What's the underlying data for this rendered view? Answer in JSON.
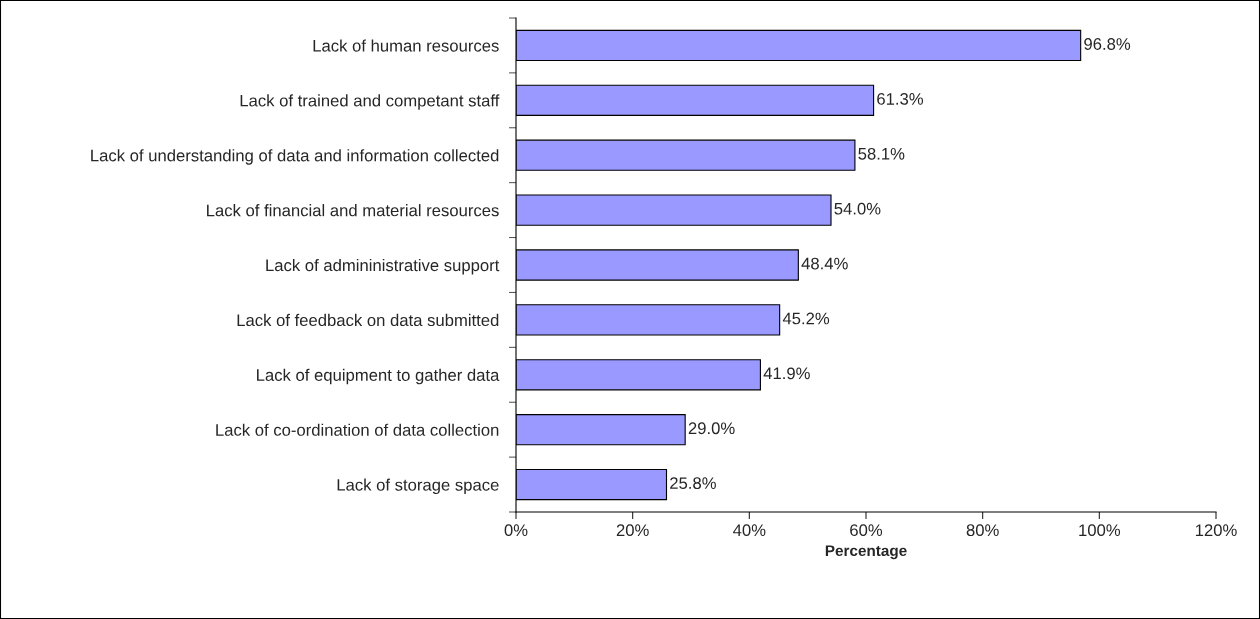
{
  "chart_data": {
    "type": "bar",
    "orientation": "horizontal",
    "xlabel": "Percentage",
    "categories": [
      "Lack of human resources",
      "Lack of trained and competant staff",
      "Lack of understanding of data and information collected",
      "Lack of financial and material resources",
      "Lack of admininistrative support",
      "Lack of feedback on data submitted",
      "Lack of equipment to gather data",
      "Lack of co-ordination of data collection",
      "Lack of storage space"
    ],
    "values": [
      96.8,
      61.3,
      58.1,
      54.0,
      48.4,
      45.2,
      41.9,
      29.0,
      25.8
    ],
    "value_labels": [
      "96.8%",
      "61.3%",
      "58.1%",
      "54.0%",
      "48.4%",
      "45.2%",
      "41.9%",
      "29.0%",
      "25.8%"
    ],
    "color": "#9999ff",
    "xlim": [
      0,
      120
    ],
    "xticks": [
      {
        "value": 0,
        "label": "0%"
      },
      {
        "value": 20,
        "label": "20%"
      },
      {
        "value": 40,
        "label": "40%"
      },
      {
        "value": 60,
        "label": "60%"
      },
      {
        "value": 80,
        "label": "80%"
      },
      {
        "value": 100,
        "label": "100%"
      },
      {
        "value": 120,
        "label": "120%"
      }
    ],
    "grid": false,
    "legend": false
  }
}
